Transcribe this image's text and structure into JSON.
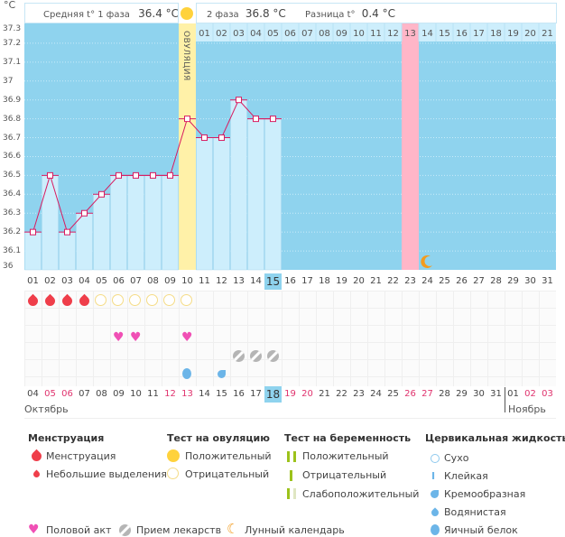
{
  "chart_data": {
    "type": "bar",
    "title": "",
    "ylabel": "°C",
    "ylim": [
      36.0,
      37.3
    ],
    "yticks": [
      "37.3",
      "37.2",
      "37.1",
      "37",
      "36.9",
      "36.8",
      "36.7",
      "36.6",
      "36.5",
      "36.4",
      "36.3",
      "36.2",
      "36.1",
      "36"
    ],
    "days": [
      "01",
      "02",
      "03",
      "04",
      "05",
      "06",
      "07",
      "08",
      "09",
      "10",
      "11",
      "12",
      "13",
      "14",
      "15",
      "16",
      "17",
      "18",
      "19",
      "20",
      "21",
      "22",
      "23",
      "24",
      "25",
      "26",
      "27",
      "28",
      "29",
      "30",
      "31"
    ],
    "temperatures": [
      36.2,
      36.5,
      36.2,
      36.3,
      36.4,
      36.5,
      36.5,
      36.5,
      36.5,
      36.8,
      36.7,
      36.7,
      36.9,
      36.8,
      36.8
    ],
    "ovulation_day_index": 9,
    "ovulation_label": "ОВУЛЯЦИЯ",
    "phase2_days": [
      "01",
      "02",
      "03",
      "04",
      "05",
      "06",
      "07",
      "08",
      "09",
      "10",
      "11",
      "12",
      "13",
      "14",
      "15",
      "16",
      "17",
      "18",
      "19",
      "20",
      "21"
    ],
    "highlight_phase2_index": 12,
    "current_day": "15",
    "moon_day_index": 23
  },
  "header": {
    "unit": "°C",
    "phase1_label": "Средняя t° 1 фаза",
    "phase1_value": "36.4 °C",
    "phase2_label": "2 фаза",
    "phase2_value": "36.8 °C",
    "diff_label": "Разница t°",
    "diff_value": "0.4 °C"
  },
  "rows": {
    "menstruation_days": [
      0,
      1,
      2,
      3
    ],
    "ovulation_test_negative_days": [
      4,
      5,
      6,
      7,
      8,
      9
    ],
    "intercourse_days": [
      5,
      6,
      9
    ],
    "medication_days": [
      12,
      13,
      14
    ],
    "cervical_egg_days": [
      9
    ],
    "cervical_creamy_days": [
      11
    ]
  },
  "calendar": {
    "dates": [
      {
        "d": "04",
        "w": false
      },
      {
        "d": "05",
        "w": true
      },
      {
        "d": "06",
        "w": true
      },
      {
        "d": "07",
        "w": false
      },
      {
        "d": "08",
        "w": false
      },
      {
        "d": "09",
        "w": false
      },
      {
        "d": "10",
        "w": false
      },
      {
        "d": "11",
        "w": false
      },
      {
        "d": "12",
        "w": true
      },
      {
        "d": "13",
        "w": true
      },
      {
        "d": "14",
        "w": false
      },
      {
        "d": "15",
        "w": false
      },
      {
        "d": "16",
        "w": false
      },
      {
        "d": "17",
        "w": false
      },
      {
        "d": "18",
        "w": false
      },
      {
        "d": "19",
        "w": true
      },
      {
        "d": "20",
        "w": true
      },
      {
        "d": "21",
        "w": false
      },
      {
        "d": "22",
        "w": false
      },
      {
        "d": "23",
        "w": false
      },
      {
        "d": "24",
        "w": false
      },
      {
        "d": "25",
        "w": false
      },
      {
        "d": "26",
        "w": true
      },
      {
        "d": "27",
        "w": true
      },
      {
        "d": "28",
        "w": false
      },
      {
        "d": "29",
        "w": false
      },
      {
        "d": "30",
        "w": false
      },
      {
        "d": "31",
        "w": false
      },
      {
        "d": "01",
        "w": false
      },
      {
        "d": "02",
        "w": true
      },
      {
        "d": "03",
        "w": true
      }
    ],
    "today_index": 14,
    "month1": "Октябрь",
    "month2": "Ноябрь"
  },
  "legend": {
    "menstruation": {
      "title": "Менструация",
      "items": [
        "Менструация",
        "Небольшие выделения"
      ]
    },
    "ovulation_test": {
      "title": "Тест на овуляцию",
      "items": [
        "Положительный",
        "Отрицательный"
      ]
    },
    "pregnancy_test": {
      "title": "Тест на беременность",
      "items": [
        "Положительный",
        "Отрицательный",
        "Слабоположительный"
      ]
    },
    "cervical": {
      "title": "Цервикальная жидкость",
      "items": [
        "Сухо",
        "Клейкая",
        "Кремообразная",
        "Водянистая",
        "Яичный белок"
      ]
    },
    "other": [
      "Половой акт",
      "Прием лекарств",
      "Лунный календарь"
    ]
  },
  "colors": {
    "sky": "#8fd3ee",
    "bar": "#cdeefc",
    "line": "#d81b60",
    "ovul": "#fff1a8",
    "pink": "#ffb6c8",
    "sun": "#ffd23c",
    "red": "#ef3e4a",
    "heart": "#f050b5",
    "moon": "#f39c1f"
  }
}
